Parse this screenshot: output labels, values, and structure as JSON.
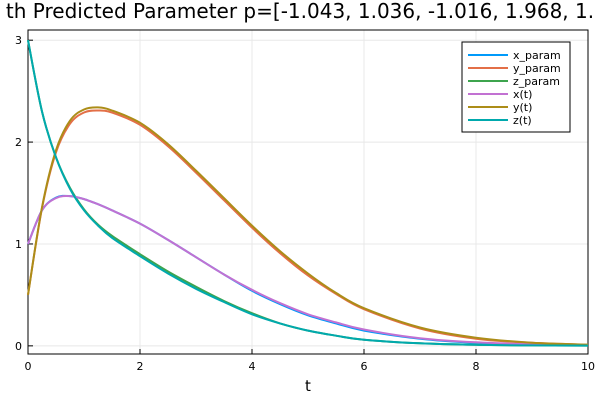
{
  "chart_data": {
    "type": "line",
    "title": "th Predicted Parameter p=[-1.043, 1.036, -1.016, 1.968, 1.",
    "xlabel": "t",
    "ylabel": "",
    "xlim": [
      0,
      10
    ],
    "ylim": [
      -0.08,
      3.1
    ],
    "xticks": [
      0,
      2,
      4,
      6,
      8,
      10
    ],
    "yticks": [
      0,
      1,
      2,
      3
    ],
    "grid": true,
    "legend_position": "top-right",
    "x": [
      0,
      0.25,
      0.5,
      0.75,
      1,
      1.25,
      1.5,
      2,
      2.5,
      3,
      3.5,
      4,
      4.5,
      5,
      5.5,
      6,
      7,
      8,
      9,
      10
    ],
    "series": [
      {
        "name": "x_param",
        "color": "#009AFA",
        "values": [
          1.0,
          1.33,
          1.455,
          1.47,
          1.44,
          1.39,
          1.33,
          1.2,
          1.04,
          0.87,
          0.7,
          0.54,
          0.41,
          0.3,
          0.22,
          0.15,
          0.07,
          0.03,
          0.012,
          0.005
        ]
      },
      {
        "name": "y_param",
        "color": "#E36F47",
        "values": [
          0.5,
          1.35,
          1.9,
          2.18,
          2.29,
          2.31,
          2.29,
          2.17,
          1.96,
          1.7,
          1.43,
          1.16,
          0.91,
          0.69,
          0.51,
          0.36,
          0.17,
          0.07,
          0.03,
          0.01
        ]
      },
      {
        "name": "z_param",
        "color": "#3EA44E",
        "values": [
          3.0,
          2.3,
          1.85,
          1.55,
          1.34,
          1.19,
          1.08,
          0.9,
          0.73,
          0.58,
          0.44,
          0.32,
          0.22,
          0.15,
          0.1,
          0.06,
          0.025,
          0.01,
          0.004,
          0.002
        ]
      },
      {
        "name": "x(t)",
        "color": "#C271D2",
        "values": [
          1.0,
          1.33,
          1.45,
          1.47,
          1.44,
          1.39,
          1.33,
          1.2,
          1.04,
          0.87,
          0.7,
          0.55,
          0.42,
          0.31,
          0.23,
          0.16,
          0.075,
          0.035,
          0.015,
          0.006
        ]
      },
      {
        "name": "y(t)",
        "color": "#AC8D18",
        "values": [
          0.5,
          1.36,
          1.92,
          2.21,
          2.32,
          2.34,
          2.31,
          2.19,
          1.98,
          1.72,
          1.45,
          1.18,
          0.93,
          0.71,
          0.52,
          0.37,
          0.18,
          0.08,
          0.03,
          0.012
        ]
      },
      {
        "name": "z(t)",
        "color": "#00A9AD",
        "values": [
          3.0,
          2.3,
          1.85,
          1.54,
          1.33,
          1.18,
          1.06,
          0.88,
          0.71,
          0.56,
          0.43,
          0.31,
          0.22,
          0.15,
          0.1,
          0.06,
          0.025,
          0.01,
          0.004,
          0.002
        ]
      }
    ]
  }
}
